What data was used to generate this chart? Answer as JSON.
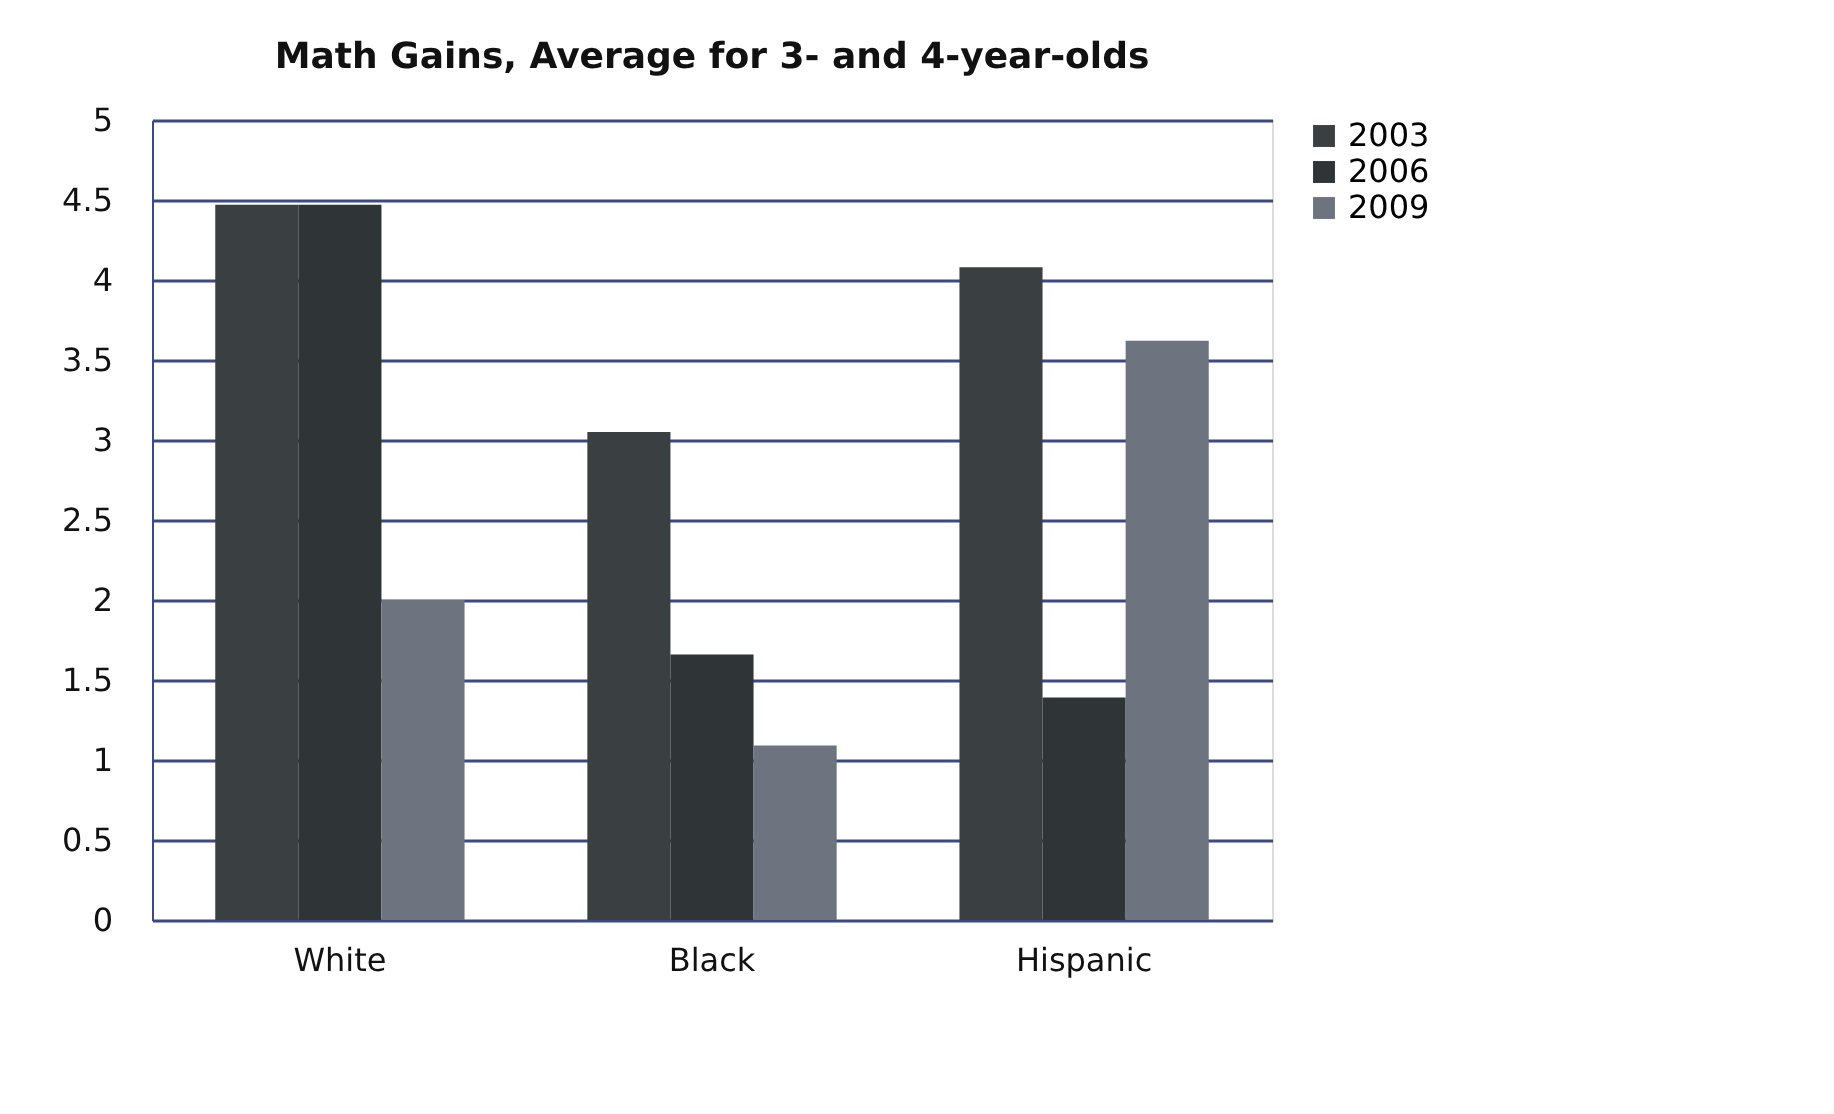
{
  "chart_data": {
    "type": "bar",
    "title": "Math Gains, Average for 3- and 4-year-olds",
    "categories": [
      "White",
      "Black",
      "Hispanic"
    ],
    "series": [
      {
        "name": "2003",
        "color": "#3a3f42",
        "values": [
          4.47,
          3.05,
          4.08
        ]
      },
      {
        "name": "2006",
        "color": "#2f3436",
        "values": [
          4.47,
          1.66,
          1.39
        ]
      },
      {
        "name": "2009",
        "color": "#6e7380",
        "values": [
          2.0,
          1.09,
          3.62
        ]
      }
    ],
    "ylim": [
      0,
      5
    ],
    "yticks": [
      0,
      0.5,
      1,
      1.5,
      2,
      2.5,
      3,
      3.5,
      4,
      4.5,
      5
    ],
    "grid": "y",
    "legend": "right"
  }
}
